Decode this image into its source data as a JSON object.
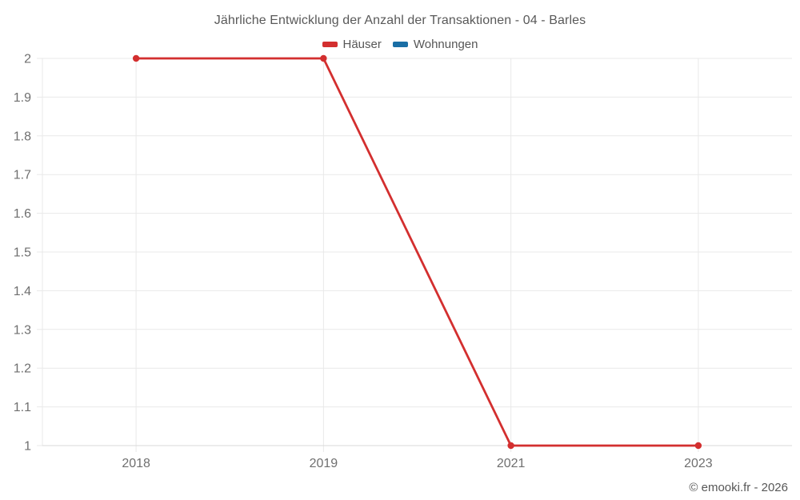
{
  "chart_data": {
    "type": "line",
    "title": "Jährliche Entwicklung der Anzahl der Transaktionen - 04 - Barles",
    "categories": [
      "2018",
      "2019",
      "2021",
      "2023"
    ],
    "series": [
      {
        "name": "Häuser",
        "color": "#d32f2f",
        "values": [
          2,
          2,
          1,
          1
        ]
      },
      {
        "name": "Wohnungen",
        "color": "#1a6ea5",
        "values": []
      }
    ],
    "ylim": [
      1,
      2
    ],
    "ytick_labels": [
      "1",
      "1.1",
      "1.2",
      "1.3",
      "1.4",
      "1.5",
      "1.6",
      "1.7",
      "1.8",
      "1.9",
      "2"
    ],
    "xlabel": "",
    "ylabel": "",
    "grid": true,
    "legend_position": "top",
    "marker_radius": 4.2,
    "line_width": 2.8
  },
  "footer": {
    "copyright": "© emooki.fr - 2026"
  },
  "colors": {
    "background": "#ffffff",
    "grid": "#e9e9e9",
    "axis_border": "#d9d9d9",
    "tick_text": "#6f6f6f",
    "title_text": "#595959",
    "legend_text": "#565656"
  }
}
